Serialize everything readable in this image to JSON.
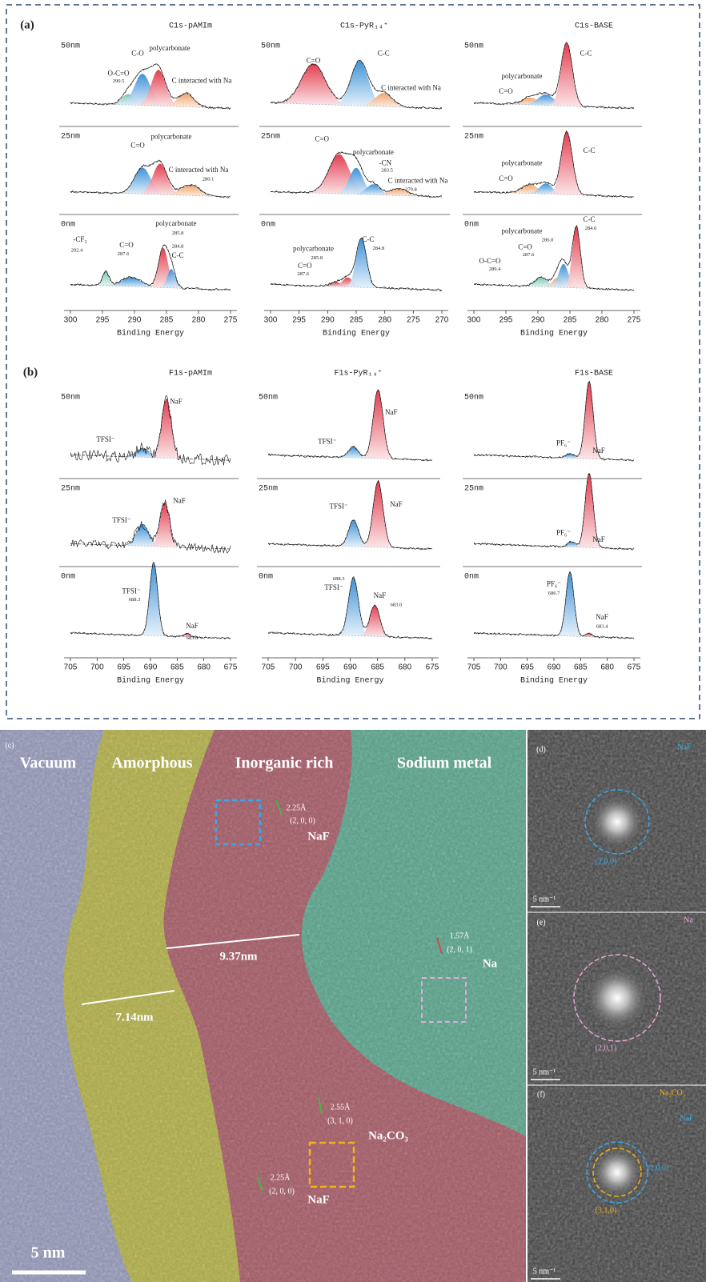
{
  "panel_a": {
    "label": "(a)",
    "xlabel": "Binding Energy",
    "columns": [
      {
        "title": "C1s-pAMIm",
        "xticks": [
          300,
          295,
          290,
          285,
          280,
          275
        ],
        "rows": [
          {
            "depth": "50nm",
            "labels": [
              "O-C=O",
              "290.5",
              "C-O",
              "polycarbonate",
              "C interacted with Na"
            ]
          },
          {
            "depth": "25nm",
            "labels": [
              "C=O",
              "polycarbonate",
              "C interacted with Na",
              "280.1"
            ]
          },
          {
            "depth": "0nm",
            "labels": [
              "-CF₃",
              "292.4",
              "C=O",
              "287.6",
              "polycarbonate",
              "285.8",
              "284.8",
              "C-C"
            ]
          }
        ]
      },
      {
        "title": "C1s-PyR₁₄⁺",
        "xticks": [
          300,
          295,
          290,
          285,
          280,
          275,
          270
        ],
        "rows": [
          {
            "depth": "50nm",
            "labels": [
              "C=O",
              "C-C",
              "C interacted with Na"
            ]
          },
          {
            "depth": "25nm",
            "labels": [
              "C=O",
              "polycarbonate",
              "-CN",
              "283.5",
              "C interacted with Na",
              "279.8"
            ]
          },
          {
            "depth": "0nm",
            "labels": [
              "C-C",
              "284.8",
              "polycarbonate",
              "285.8",
              "C=O",
              "287.6"
            ]
          }
        ]
      },
      {
        "title": "C1s-BASE",
        "xticks": [
          300,
          295,
          290,
          285,
          280,
          275
        ],
        "rows": [
          {
            "depth": "50nm",
            "labels": [
              "C-C",
              "polycarbonate",
              "C=O"
            ]
          },
          {
            "depth": "25nm",
            "labels": [
              "C-C",
              "polycarbonate",
              "C=O"
            ]
          },
          {
            "depth": "0nm",
            "labels": [
              "C-C",
              "284.6",
              "polycarbonate",
              "286.0",
              "C=O",
              "287.6",
              "O-C=O",
              "289.4"
            ]
          }
        ]
      }
    ]
  },
  "panel_b": {
    "label": "(b)",
    "xlabel": "Binding Energy",
    "columns": [
      {
        "title": "F1s-pAMIm",
        "xticks": [
          705,
          700,
          695,
          690,
          685,
          680,
          675
        ],
        "rows": [
          {
            "depth": "50nm",
            "labels": [
              "TFSI⁻",
              "NaF"
            ]
          },
          {
            "depth": "25nm",
            "labels": [
              "TFSI⁻",
              "NaF"
            ]
          },
          {
            "depth": "0nm",
            "labels": [
              "TFSI⁻",
              "688.3",
              "NaF",
              "683.0"
            ]
          }
        ]
      },
      {
        "title": "F1s-PyR₁₄⁺",
        "xticks": [
          705,
          700,
          695,
          690,
          685,
          680,
          675
        ],
        "rows": [
          {
            "depth": "50nm",
            "labels": [
              "TFSI⁻",
              "NaF"
            ]
          },
          {
            "depth": "25nm",
            "labels": [
              "TFSI⁻",
              "NaF"
            ]
          },
          {
            "depth": "0nm",
            "labels": [
              "688.3",
              "TFSI⁻",
              "NaF",
              "683.0"
            ]
          }
        ]
      },
      {
        "title": "F1s-BASE",
        "xticks": [
          705,
          700,
          695,
          690,
          685,
          680,
          675
        ],
        "rows": [
          {
            "depth": "50nm",
            "labels": [
              "PF₆⁻",
              "NaF"
            ]
          },
          {
            "depth": "25nm",
            "labels": [
              "PF₆⁻",
              "NaF"
            ]
          },
          {
            "depth": "0nm",
            "labels": [
              "PF₆⁻",
              "686.7",
              "NaF",
              "683.4"
            ]
          }
        ]
      }
    ]
  },
  "panel_c": {
    "label": "(c)",
    "regions": [
      "Vacuum",
      "Amorphous",
      "Inorganic rich",
      "Sodium metal"
    ],
    "measurements": [
      "9.37nm",
      "7.14nm"
    ],
    "lattices": [
      {
        "spacing": "2.25Å",
        "plane": "(2, 0, 0)",
        "phase": "NaF"
      },
      {
        "spacing": "1.57Å",
        "plane": "(2, 0, 1)",
        "phase": "Na"
      },
      {
        "spacing": "2.55Å",
        "plane": "(3, 1, 0)",
        "phase": "Na₂CO₃"
      },
      {
        "spacing": "2.25Å",
        "plane": "(2, 0, 0)",
        "phase": "NaF"
      }
    ],
    "scale_bar": "5 nm"
  },
  "panel_d": {
    "label": "(d)",
    "phase": "NaF",
    "plane": "(2,0,0)",
    "scale_bar": "5 nm⁻¹"
  },
  "panel_e": {
    "label": "(e)",
    "phase": "Na",
    "plane": "(2,0,1)",
    "scale_bar": "5 nm⁻¹"
  },
  "panel_f": {
    "label": "(f)",
    "phases": [
      "Na₂CO₃",
      "NaF"
    ],
    "planes": [
      "(2,0,0)",
      "(3,1,0)"
    ],
    "scale_bar": "5 nm⁻¹"
  }
}
